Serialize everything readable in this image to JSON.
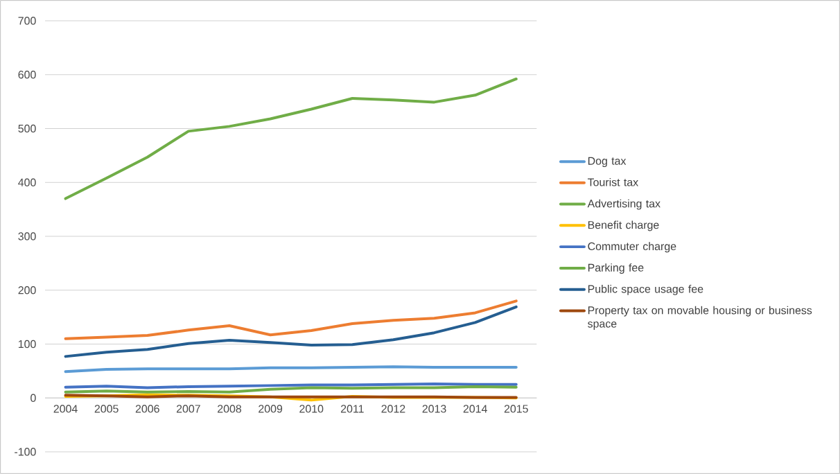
{
  "chart_data": {
    "type": "line",
    "categories": [
      "2004",
      "2005",
      "2006",
      "2007",
      "2008",
      "2009",
      "2010",
      "2011",
      "2012",
      "2013",
      "2014",
      "2015"
    ],
    "series": [
      {
        "name": "Dog tax",
        "color": "#5b9bd5",
        "values": [
          49,
          53,
          54,
          54,
          54,
          56,
          56,
          57,
          58,
          57,
          57,
          57
        ]
      },
      {
        "name": "Tourist tax",
        "color": "#ed7d31",
        "values": [
          110,
          113,
          116,
          126,
          134,
          117,
          125,
          138,
          144,
          148,
          158,
          180
        ]
      },
      {
        "name": "Advertising tax",
        "color": "#70ad47",
        "values": [
          370,
          408,
          447,
          495,
          504,
          518,
          536,
          556,
          553,
          549,
          562,
          592
        ]
      },
      {
        "name": "Benefit charge",
        "color": "#ffc000",
        "values": [
          3,
          4,
          6,
          5,
          4,
          2,
          -4,
          3,
          1,
          1,
          1,
          0
        ]
      },
      {
        "name": "Commuter charge",
        "color": "#4472c4",
        "values": [
          20,
          22,
          19,
          21,
          22,
          23,
          24,
          24,
          25,
          26,
          25,
          25
        ]
      },
      {
        "name": "Parking fee",
        "color": "#70ad47",
        "values": [
          11,
          13,
          11,
          12,
          11,
          16,
          19,
          18,
          19,
          19,
          21,
          20
        ]
      },
      {
        "name": "Public space usage fee",
        "color": "#255e91",
        "values": [
          77,
          85,
          90,
          101,
          107,
          103,
          98,
          99,
          108,
          121,
          140,
          169
        ]
      },
      {
        "name": "Property tax on movable housing or business space",
        "color": "#9e480e",
        "values": [
          5,
          4,
          2,
          4,
          2,
          2,
          2,
          2,
          2,
          2,
          1,
          1
        ]
      }
    ],
    "ylim": [
      -100,
      700
    ],
    "yticks": [
      -100,
      0,
      100,
      200,
      300,
      400,
      500,
      600,
      700
    ],
    "grid": "y",
    "legend": "right",
    "marker": "none",
    "line_style": "solid"
  }
}
